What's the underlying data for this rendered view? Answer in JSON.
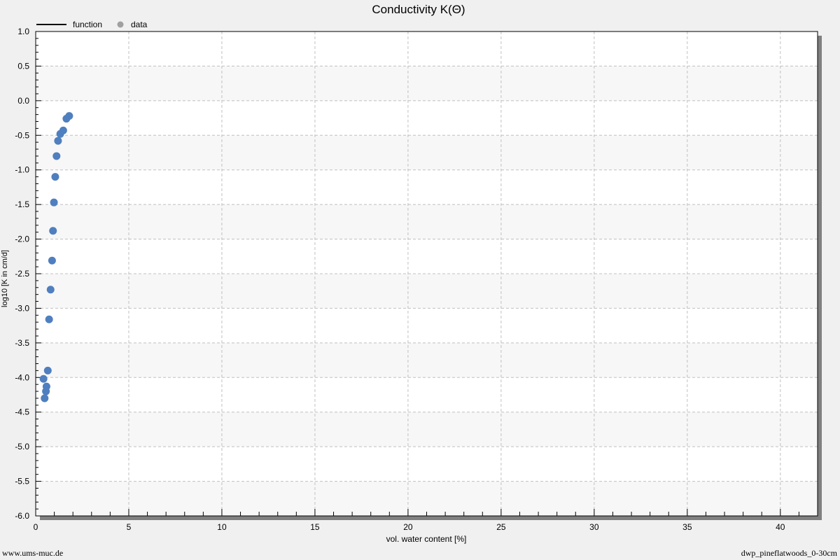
{
  "chart_data": {
    "type": "scatter",
    "title": "Conductivity K(Θ)",
    "xlabel": "vol. water content [%]",
    "ylabel": "log10 [K in cm/d]",
    "xlim": [
      0,
      42
    ],
    "ylim": [
      -6.0,
      1.0
    ],
    "x_major_ticks": [
      0,
      5,
      10,
      15,
      20,
      25,
      30,
      35,
      40
    ],
    "x_tick_labels": [
      "0",
      "5",
      "10",
      "15",
      "20",
      "25",
      "30",
      "35",
      "40"
    ],
    "y_major_ticks": [
      1.0,
      0.5,
      0.0,
      -0.5,
      -1.0,
      -1.5,
      -2.0,
      -2.5,
      -3.0,
      -3.5,
      -4.0,
      -4.5,
      -5.0,
      -5.5,
      -6.0
    ],
    "y_tick_labels": [
      "1.0",
      "0.5",
      "0.0",
      "-0.5",
      "-1.0",
      "-1.5",
      "-2.0",
      "-2.5",
      "-3.0",
      "-3.5",
      "-4.0",
      "-4.5",
      "-5.0",
      "-5.5",
      "-6.0"
    ],
    "grid": true,
    "legend": [
      {
        "label": "function",
        "marker": "line",
        "color": "#000000"
      },
      {
        "label": "data",
        "marker": "dot",
        "color": "#a0a0a0"
      }
    ],
    "legend_placement": "top-left",
    "series": [
      {
        "name": "data",
        "color": "#4f7fbf",
        "points": [
          {
            "x": 0.42,
            "y": -4.02
          },
          {
            "x": 0.48,
            "y": -4.3
          },
          {
            "x": 0.55,
            "y": -4.2
          },
          {
            "x": 0.58,
            "y": -4.13
          },
          {
            "x": 0.65,
            "y": -3.9
          },
          {
            "x": 0.72,
            "y": -3.16
          },
          {
            "x": 0.8,
            "y": -2.73
          },
          {
            "x": 0.88,
            "y": -2.31
          },
          {
            "x": 0.93,
            "y": -1.88
          },
          {
            "x": 0.98,
            "y": -1.47
          },
          {
            "x": 1.05,
            "y": -1.1
          },
          {
            "x": 1.12,
            "y": -0.8
          },
          {
            "x": 1.2,
            "y": -0.58
          },
          {
            "x": 1.32,
            "y": -0.48
          },
          {
            "x": 1.48,
            "y": -0.43
          },
          {
            "x": 1.65,
            "y": -0.26
          },
          {
            "x": 1.8,
            "y": -0.22
          }
        ]
      }
    ]
  },
  "footer": {
    "left": "www.ums-muc.de",
    "right": "dwp_pineflatwoods_0-30cm"
  }
}
